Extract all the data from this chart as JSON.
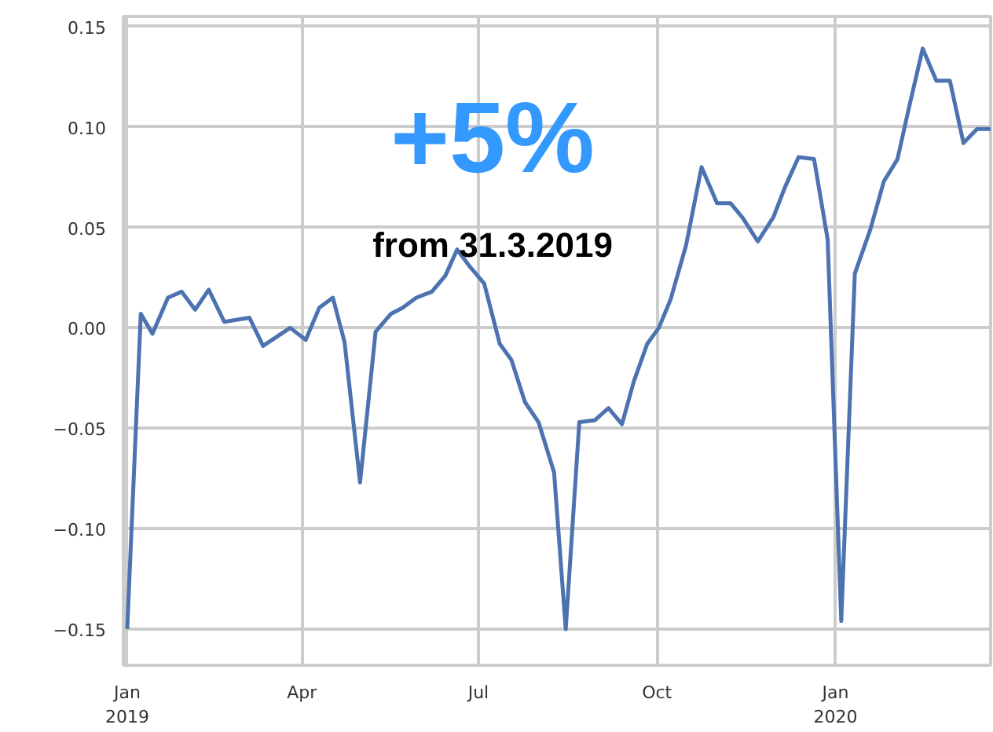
{
  "chart_data": {
    "type": "line",
    "annotations": [
      "+5%",
      "from 31.3.2019"
    ],
    "x": [
      "2019-01-01",
      "2019-01-08",
      "2019-01-14",
      "2019-01-22",
      "2019-01-29",
      "2019-02-05",
      "2019-02-12",
      "2019-02-20",
      "2019-03-05",
      "2019-03-12",
      "2019-03-26",
      "2019-04-03",
      "2019-04-10",
      "2019-04-17",
      "2019-04-23",
      "2019-05-01",
      "2019-05-09",
      "2019-05-17",
      "2019-05-23",
      "2019-05-30",
      "2019-06-07",
      "2019-06-14",
      "2019-06-20",
      "2019-06-27",
      "2019-07-04",
      "2019-07-12",
      "2019-07-18",
      "2019-07-25",
      "2019-08-01",
      "2019-08-09",
      "2019-08-15",
      "2019-08-22",
      "2019-08-30",
      "2019-09-06",
      "2019-09-13",
      "2019-09-19",
      "2019-09-26",
      "2019-10-02",
      "2019-10-08",
      "2019-10-16",
      "2019-10-24",
      "2019-11-01",
      "2019-11-08",
      "2019-11-14",
      "2019-11-22",
      "2019-11-30",
      "2019-12-06",
      "2019-12-13",
      "2019-12-21",
      "2019-12-28",
      "2020-01-04",
      "2020-01-11",
      "2020-01-19",
      "2020-01-26",
      "2020-02-02",
      "2020-02-08",
      "2020-02-15",
      "2020-02-22",
      "2020-02-29",
      "2020-03-07",
      "2020-03-14",
      "2020-03-21"
    ],
    "series": [
      {
        "color": "#4c72b0",
        "values": [
          -0.15,
          0.007,
          -0.003,
          0.015,
          0.018,
          0.009,
          0.019,
          0.003,
          0.005,
          -0.009,
          0.0,
          -0.006,
          0.01,
          0.015,
          -0.007,
          -0.077,
          -0.002,
          0.007,
          0.01,
          0.015,
          0.018,
          0.026,
          0.039,
          0.03,
          0.022,
          -0.008,
          -0.016,
          -0.037,
          -0.047,
          -0.072,
          -0.15,
          -0.047,
          -0.046,
          -0.04,
          -0.048,
          -0.027,
          -0.008,
          0.0,
          0.014,
          0.041,
          0.08,
          0.062,
          0.062,
          0.055,
          0.043,
          0.055,
          0.07,
          0.085,
          0.084,
          0.044,
          -0.146,
          0.027,
          0.049,
          0.073,
          0.084,
          0.11,
          0.139,
          0.123,
          0.123,
          0.092,
          0.099,
          0.099
        ]
      }
    ],
    "xlim": [
      "2018-12-30",
      "2020-03-21"
    ],
    "xticks": [
      {
        "value": "2019-01-01",
        "label": "Jan\n2019"
      },
      {
        "value": "2019-04-01",
        "label": "Apr"
      },
      {
        "value": "2019-07-01",
        "label": "Jul"
      },
      {
        "value": "2019-10-01",
        "label": "Oct"
      },
      {
        "value": "2020-01-01",
        "label": "Jan\n2020"
      }
    ],
    "ylim": [
      -0.168,
      0.155
    ],
    "yticks": [
      {
        "value": -0.15,
        "label": "−0.15"
      },
      {
        "value": -0.1,
        "label": "−0.10"
      },
      {
        "value": -0.05,
        "label": "−0.05"
      },
      {
        "value": 0,
        "label": "0.00"
      },
      {
        "value": 0.05,
        "label": "0.05"
      },
      {
        "value": 0.1,
        "label": "0.10"
      },
      {
        "value": 0.15,
        "label": "0.15"
      }
    ],
    "grid": true,
    "line_style": "solid",
    "marker": "none"
  }
}
